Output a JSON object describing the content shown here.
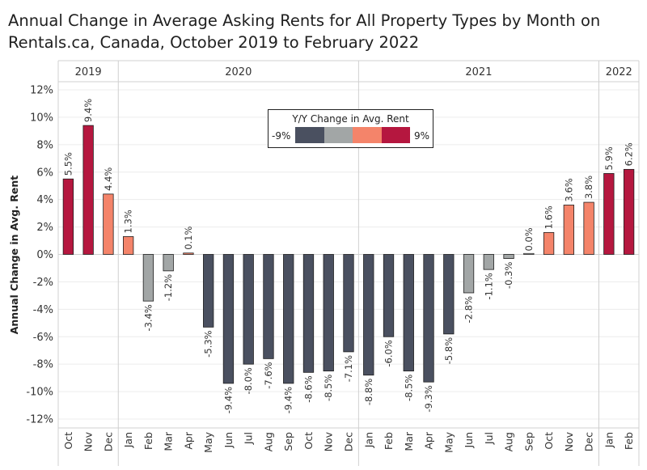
{
  "chart_data": {
    "type": "bar",
    "title": "Annual Change in Average Asking Rents for All Property Types by Month on Rentals.ca, Canada, October 2019 to February 2022",
    "ylabel": "Annual Change in Avg. Rent",
    "xlabel": "",
    "ylim": [
      -12,
      12
    ],
    "yticks": [
      12,
      10,
      8,
      6,
      4,
      2,
      0,
      -2,
      -4,
      -6,
      -8,
      -10,
      -12
    ],
    "ytick_labels": [
      "12%",
      "10%",
      "8%",
      "6%",
      "4%",
      "2%",
      "0%",
      "-2%",
      "-4%",
      "-6%",
      "-8%",
      "-10%",
      "-12%"
    ],
    "years": [
      {
        "label": "2019",
        "count": 3
      },
      {
        "label": "2020",
        "count": 12
      },
      {
        "label": "2021",
        "count": 12
      },
      {
        "label": "2022",
        "count": 2
      }
    ],
    "categories": [
      "Oct",
      "Nov",
      "Dec",
      "Jan",
      "Feb",
      "Mar",
      "Apr",
      "May",
      "Jun",
      "Jul",
      "Aug",
      "Sep",
      "Oct",
      "Nov",
      "Dec",
      "Jan",
      "Feb",
      "Mar",
      "Apr",
      "May",
      "Jun",
      "Jul",
      "Aug",
      "Sep",
      "Oct",
      "Nov",
      "Dec",
      "Jan",
      "Feb"
    ],
    "values": [
      5.5,
      9.4,
      4.4,
      1.3,
      -3.4,
      -1.2,
      0.1,
      -5.3,
      -9.4,
      -8.0,
      -7.6,
      -9.4,
      -8.6,
      -8.5,
      -7.1,
      -8.8,
      -6.0,
      -8.5,
      -9.3,
      -5.8,
      -2.8,
      -1.1,
      -0.3,
      0.0,
      1.6,
      3.6,
      3.8,
      5.9,
      6.2
    ],
    "value_labels": [
      "5.5%",
      "9.4%",
      "4.4%",
      "1.3%",
      "-3.4%",
      "-1.2%",
      "0.1%",
      "-5.3%",
      "-9.4%",
      "-8.0%",
      "-7.6%",
      "-9.4%",
      "-8.6%",
      "-8.5%",
      "-7.1%",
      "-8.8%",
      "-6.0%",
      "-8.5%",
      "-9.3%",
      "-5.8%",
      "-2.8%",
      "-1.1%",
      "-0.3%",
      "0.0%",
      "1.6%",
      "3.6%",
      "3.8%",
      "5.9%",
      "6.2%"
    ],
    "legend": {
      "title": "Y/Y Change in Avg. Rent",
      "min_label": "-9%",
      "max_label": "9%",
      "colors": [
        "#4a5060",
        "#a2a6a6",
        "#f4846a",
        "#b5173f"
      ]
    }
  }
}
